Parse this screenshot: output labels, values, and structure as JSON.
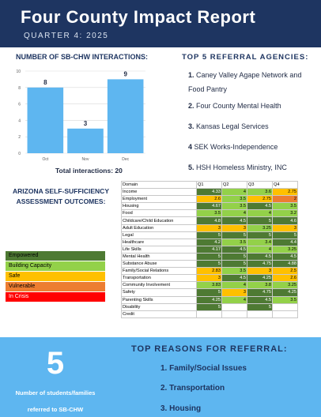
{
  "header": {
    "title": "Four County Impact Report",
    "subtitle": "QUARTER 4: 2025"
  },
  "interactions": {
    "heading": "NUMBER OF SB-CHW INTERACTIONS:",
    "total_label": "Total interactions: 20"
  },
  "chart_data": {
    "type": "bar",
    "categories": [
      "Oct",
      "Nov",
      "Dec"
    ],
    "values": [
      8,
      3,
      9
    ],
    "ylim": [
      0,
      10
    ],
    "yticks": [
      0,
      2,
      4,
      6,
      8,
      10
    ],
    "grid": true,
    "bar_color": "#5eb6f0"
  },
  "referral_agencies": {
    "heading": "TOP 5 REFERRAL AGENCIES:",
    "items": [
      {
        "num": "1.",
        "name": "Caney Valley Agape Network and Food Pantry"
      },
      {
        "num": "2.",
        "name": "Four County Mental Health"
      },
      {
        "num": "3.",
        "name": "Kansas Legal Services"
      },
      {
        "num": "4",
        "name": "SEK Works-Independence"
      },
      {
        "num": "5.",
        "name": "HSH Homeless Ministry, INC"
      }
    ]
  },
  "assessment": {
    "heading": "ARIZONA SELF-SUFFICIENCY ASSESSMENT OUTCOMES:",
    "legend": [
      "Empowered",
      "Building Capacity",
      "Safe",
      "Vulnerable",
      "In Crisis"
    ],
    "legend_colors": [
      "#4e7a33",
      "#93d149",
      "#ffc000",
      "#ed7d31",
      "#ff0000"
    ],
    "columns": [
      "Domain",
      "Q1",
      "Q2",
      "Q3",
      "Q4"
    ],
    "rows": [
      {
        "domain": "Income",
        "values": [
          "4.33",
          "4",
          "3.6",
          "2.75"
        ],
        "colors": [
          "dg",
          "lg",
          "lg",
          "y"
        ]
      },
      {
        "domain": "Employment",
        "values": [
          "2.6",
          "3.5",
          "2.75",
          "2"
        ],
        "colors": [
          "y",
          "lg",
          "y",
          "o"
        ]
      },
      {
        "domain": "Housing",
        "values": [
          "4.67",
          "3.5",
          "4.5",
          "3.5"
        ],
        "colors": [
          "dg",
          "lg",
          "dg",
          "lg"
        ]
      },
      {
        "domain": "Food",
        "values": [
          "3.5",
          "4",
          "4",
          "3.2"
        ],
        "colors": [
          "lg",
          "lg",
          "lg",
          "lg"
        ]
      },
      {
        "domain": "Childcare/Child Education",
        "values": [
          "4.8",
          "4.5",
          "5",
          "4.6"
        ],
        "colors": [
          "dg",
          "dg",
          "dg",
          "dg"
        ]
      },
      {
        "domain": "Adult Education",
        "values": [
          "3",
          "3",
          "3.25",
          "3"
        ],
        "colors": [
          "y",
          "y",
          "lg",
          "y"
        ]
      },
      {
        "domain": "Legal",
        "values": [
          "5",
          "5",
          "5",
          "5"
        ],
        "colors": [
          "dg",
          "dg",
          "dg",
          "dg"
        ]
      },
      {
        "domain": "Healthcare",
        "values": [
          "4.2",
          "3.5",
          "3.4",
          "4.4"
        ],
        "colors": [
          "dg",
          "lg",
          "lg",
          "dg"
        ]
      },
      {
        "domain": "Life Skills",
        "values": [
          "4.17",
          "4.5",
          "4",
          "3.25"
        ],
        "colors": [
          "dg",
          "dg",
          "lg",
          "lg"
        ]
      },
      {
        "domain": "Mental Health",
        "values": [
          "5",
          "5",
          "4.5",
          "4.5"
        ],
        "colors": [
          "dg",
          "dg",
          "dg",
          "dg"
        ]
      },
      {
        "domain": "Substance Abuse",
        "values": [
          "5",
          "5",
          "4.75",
          "4.88"
        ],
        "colors": [
          "dg",
          "dg",
          "dg",
          "dg"
        ]
      },
      {
        "domain": "Family/Social Relations",
        "values": [
          "2.83",
          "3.5",
          "3",
          "2.5"
        ],
        "colors": [
          "y",
          "lg",
          "y",
          "y"
        ]
      },
      {
        "domain": "Transportation",
        "values": [
          "3",
          "4.5",
          "4.25",
          "2.6"
        ],
        "colors": [
          "y",
          "dg",
          "dg",
          "y"
        ]
      },
      {
        "domain": "Community Involvement",
        "values": [
          "3.83",
          "4",
          "3.8",
          "3.25"
        ],
        "colors": [
          "lg",
          "lg",
          "lg",
          "lg"
        ]
      },
      {
        "domain": "Safety",
        "values": [
          "5",
          "3",
          "4.75",
          "4.25"
        ],
        "colors": [
          "dg",
          "y",
          "dg",
          "dg"
        ]
      },
      {
        "domain": "Parenting Skills",
        "values": [
          "4.25",
          "4",
          "4.5",
          "3.5"
        ],
        "colors": [
          "dg",
          "lg",
          "dg",
          "lg"
        ]
      },
      {
        "domain": "Disability",
        "values": [
          "5",
          "",
          "5",
          ""
        ],
        "colors": [
          "dg",
          "",
          "dg",
          ""
        ]
      },
      {
        "domain": "Credit",
        "values": [
          "",
          "",
          "",
          ""
        ],
        "colors": [
          "",
          "",
          "",
          ""
        ]
      }
    ]
  },
  "students": {
    "count": "5",
    "label_line1": "Number of students/families",
    "label_line2": "referred to SB-CHW"
  },
  "reasons": {
    "heading": "TOP REASONS FOR REFERRAL:",
    "items": [
      "1. Family/Social Issues",
      "2. Transportation",
      "3. Housing"
    ]
  }
}
